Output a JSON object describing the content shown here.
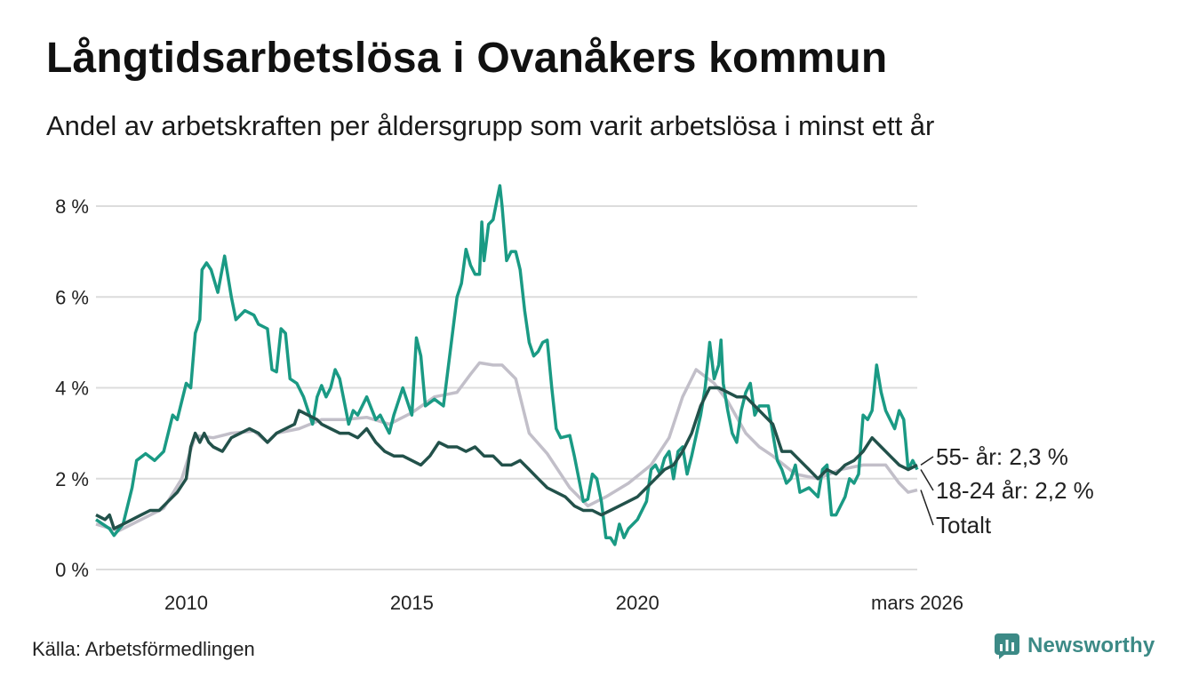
{
  "header": {
    "title": "Långtidsarbetslösa i Ovanåkers kommun",
    "subtitle": "Andel av arbetskraften per åldersgrupp som varit arbetslösa i minst ett år"
  },
  "footer": {
    "source": "Källa: Arbetsförmedlingen",
    "brand": "Newsworthy"
  },
  "chart_data": {
    "type": "line",
    "title": "Långtidsarbetslösa i Ovanåkers kommun",
    "subtitle": "Andel av arbetskraften per åldersgrupp som varit arbetslösa i minst ett år",
    "xlabel": "",
    "ylabel": "",
    "xlim": [
      2008.0,
      2026.2
    ],
    "ylim": [
      0,
      8.5
    ],
    "y_ticks": [
      0,
      2,
      4,
      6,
      8
    ],
    "y_tick_labels": [
      "0 %",
      "2 %",
      "4 %",
      "6 %",
      "8 %"
    ],
    "x_ticks": [
      2010,
      2015,
      2020,
      2026.2
    ],
    "x_tick_labels": [
      "2010",
      "2015",
      "2020",
      "mars 2026"
    ],
    "grid": true,
    "series": [
      {
        "name": "Totalt",
        "color": "#c2bfc9",
        "end_label": "Totalt",
        "points": [
          [
            2008.0,
            1.0
          ],
          [
            2008.5,
            0.85
          ],
          [
            2009.0,
            1.1
          ],
          [
            2009.5,
            1.35
          ],
          [
            2009.9,
            2.0
          ],
          [
            2010.2,
            2.95
          ],
          [
            2010.6,
            2.9
          ],
          [
            2011.0,
            3.0
          ],
          [
            2011.5,
            3.05
          ],
          [
            2011.8,
            2.8
          ],
          [
            2012.0,
            3.0
          ],
          [
            2012.5,
            3.1
          ],
          [
            2013.0,
            3.3
          ],
          [
            2013.5,
            3.3
          ],
          [
            2014.0,
            3.35
          ],
          [
            2014.5,
            3.2
          ],
          [
            2015.0,
            3.45
          ],
          [
            2015.5,
            3.8
          ],
          [
            2016.0,
            3.9
          ],
          [
            2016.3,
            4.3
          ],
          [
            2016.5,
            4.55
          ],
          [
            2016.8,
            4.5
          ],
          [
            2017.0,
            4.5
          ],
          [
            2017.3,
            4.2
          ],
          [
            2017.6,
            3.0
          ],
          [
            2018.0,
            2.55
          ],
          [
            2018.5,
            1.8
          ],
          [
            2018.9,
            1.4
          ],
          [
            2019.3,
            1.6
          ],
          [
            2019.8,
            1.9
          ],
          [
            2020.3,
            2.3
          ],
          [
            2020.7,
            2.9
          ],
          [
            2021.0,
            3.8
          ],
          [
            2021.3,
            4.4
          ],
          [
            2021.7,
            4.1
          ],
          [
            2022.0,
            3.7
          ],
          [
            2022.4,
            3.0
          ],
          [
            2022.7,
            2.7
          ],
          [
            2023.0,
            2.5
          ],
          [
            2023.5,
            2.1
          ],
          [
            2024.0,
            2.0
          ],
          [
            2024.5,
            2.2
          ],
          [
            2025.0,
            2.3
          ],
          [
            2025.5,
            2.3
          ],
          [
            2025.8,
            1.9
          ],
          [
            2026.0,
            1.7
          ],
          [
            2026.2,
            1.75
          ]
        ]
      },
      {
        "name": "18-24 år",
        "color": "#1a9a84",
        "end_label": "18-24 år: 2,2 %",
        "points": [
          [
            2008.0,
            1.1
          ],
          [
            2008.3,
            0.9
          ],
          [
            2008.4,
            0.75
          ],
          [
            2008.6,
            1.0
          ],
          [
            2008.8,
            1.8
          ],
          [
            2008.9,
            2.4
          ],
          [
            2009.1,
            2.55
          ],
          [
            2009.3,
            2.4
          ],
          [
            2009.5,
            2.6
          ],
          [
            2009.7,
            3.4
          ],
          [
            2009.8,
            3.3
          ],
          [
            2010.0,
            4.1
          ],
          [
            2010.1,
            4.0
          ],
          [
            2010.2,
            5.2
          ],
          [
            2010.3,
            5.5
          ],
          [
            2010.35,
            6.6
          ],
          [
            2010.45,
            6.75
          ],
          [
            2010.55,
            6.6
          ],
          [
            2010.7,
            6.1
          ],
          [
            2010.85,
            6.9
          ],
          [
            2011.0,
            6.0
          ],
          [
            2011.1,
            5.5
          ],
          [
            2011.3,
            5.7
          ],
          [
            2011.5,
            5.6
          ],
          [
            2011.6,
            5.4
          ],
          [
            2011.8,
            5.3
          ],
          [
            2011.9,
            4.4
          ],
          [
            2012.0,
            4.35
          ],
          [
            2012.1,
            5.3
          ],
          [
            2012.2,
            5.2
          ],
          [
            2012.3,
            4.2
          ],
          [
            2012.45,
            4.1
          ],
          [
            2012.6,
            3.8
          ],
          [
            2012.7,
            3.5
          ],
          [
            2012.8,
            3.2
          ],
          [
            2012.9,
            3.8
          ],
          [
            2013.0,
            4.05
          ],
          [
            2013.1,
            3.8
          ],
          [
            2013.2,
            4.0
          ],
          [
            2013.3,
            4.4
          ],
          [
            2013.4,
            4.2
          ],
          [
            2013.6,
            3.2
          ],
          [
            2013.7,
            3.5
          ],
          [
            2013.8,
            3.4
          ],
          [
            2014.0,
            3.8
          ],
          [
            2014.2,
            3.3
          ],
          [
            2014.3,
            3.4
          ],
          [
            2014.5,
            3.0
          ],
          [
            2014.6,
            3.4
          ],
          [
            2014.8,
            4.0
          ],
          [
            2015.0,
            3.4
          ],
          [
            2015.1,
            5.1
          ],
          [
            2015.2,
            4.7
          ],
          [
            2015.3,
            3.6
          ],
          [
            2015.5,
            3.75
          ],
          [
            2015.7,
            3.6
          ],
          [
            2015.9,
            5.2
          ],
          [
            2016.0,
            6.0
          ],
          [
            2016.1,
            6.3
          ],
          [
            2016.2,
            7.05
          ],
          [
            2016.3,
            6.7
          ],
          [
            2016.4,
            6.5
          ],
          [
            2016.5,
            6.5
          ],
          [
            2016.55,
            7.65
          ],
          [
            2016.6,
            6.8
          ],
          [
            2016.7,
            7.6
          ],
          [
            2016.8,
            7.7
          ],
          [
            2016.9,
            8.2
          ],
          [
            2016.95,
            8.45
          ],
          [
            2017.0,
            8.0
          ],
          [
            2017.1,
            6.8
          ],
          [
            2017.2,
            7.0
          ],
          [
            2017.3,
            7.0
          ],
          [
            2017.4,
            6.6
          ],
          [
            2017.5,
            5.7
          ],
          [
            2017.6,
            5.0
          ],
          [
            2017.7,
            4.7
          ],
          [
            2017.8,
            4.8
          ],
          [
            2017.9,
            5.0
          ],
          [
            2018.0,
            5.05
          ],
          [
            2018.1,
            4.0
          ],
          [
            2018.2,
            3.1
          ],
          [
            2018.3,
            2.9
          ],
          [
            2018.5,
            2.95
          ],
          [
            2018.6,
            2.5
          ],
          [
            2018.8,
            1.5
          ],
          [
            2018.9,
            1.55
          ],
          [
            2019.0,
            2.1
          ],
          [
            2019.1,
            2.0
          ],
          [
            2019.2,
            1.5
          ],
          [
            2019.3,
            0.7
          ],
          [
            2019.4,
            0.7
          ],
          [
            2019.5,
            0.55
          ],
          [
            2019.6,
            1.0
          ],
          [
            2019.7,
            0.7
          ],
          [
            2019.8,
            0.9
          ],
          [
            2020.0,
            1.1
          ],
          [
            2020.2,
            1.5
          ],
          [
            2020.3,
            2.2
          ],
          [
            2020.4,
            2.3
          ],
          [
            2020.5,
            2.1
          ],
          [
            2020.6,
            2.45
          ],
          [
            2020.7,
            2.6
          ],
          [
            2020.8,
            2.0
          ],
          [
            2020.9,
            2.6
          ],
          [
            2021.0,
            2.7
          ],
          [
            2021.1,
            2.1
          ],
          [
            2021.2,
            2.5
          ],
          [
            2021.4,
            3.4
          ],
          [
            2021.5,
            4.0
          ],
          [
            2021.6,
            5.0
          ],
          [
            2021.7,
            4.2
          ],
          [
            2021.8,
            4.5
          ],
          [
            2021.85,
            5.05
          ],
          [
            2021.9,
            4.1
          ],
          [
            2022.0,
            3.5
          ],
          [
            2022.1,
            3.0
          ],
          [
            2022.2,
            2.8
          ],
          [
            2022.3,
            3.5
          ],
          [
            2022.4,
            3.9
          ],
          [
            2022.5,
            4.1
          ],
          [
            2022.6,
            3.4
          ],
          [
            2022.7,
            3.6
          ],
          [
            2022.9,
            3.6
          ],
          [
            2023.0,
            3.0
          ],
          [
            2023.1,
            2.4
          ],
          [
            2023.2,
            2.2
          ],
          [
            2023.3,
            1.9
          ],
          [
            2023.4,
            2.0
          ],
          [
            2023.5,
            2.3
          ],
          [
            2023.6,
            1.7
          ],
          [
            2023.8,
            1.8
          ],
          [
            2024.0,
            1.6
          ],
          [
            2024.1,
            2.2
          ],
          [
            2024.2,
            2.3
          ],
          [
            2024.3,
            1.2
          ],
          [
            2024.4,
            1.2
          ],
          [
            2024.5,
            1.4
          ],
          [
            2024.6,
            1.6
          ],
          [
            2024.7,
            2.0
          ],
          [
            2024.8,
            1.9
          ],
          [
            2024.9,
            2.1
          ],
          [
            2025.0,
            3.4
          ],
          [
            2025.1,
            3.3
          ],
          [
            2025.2,
            3.5
          ],
          [
            2025.3,
            4.5
          ],
          [
            2025.4,
            3.9
          ],
          [
            2025.5,
            3.5
          ],
          [
            2025.6,
            3.3
          ],
          [
            2025.7,
            3.1
          ],
          [
            2025.8,
            3.5
          ],
          [
            2025.9,
            3.3
          ],
          [
            2026.0,
            2.2
          ],
          [
            2026.1,
            2.4
          ],
          [
            2026.2,
            2.2
          ]
        ]
      },
      {
        "name": "55- år",
        "color": "#22514a",
        "end_label": "55- år: 2,3 %",
        "points": [
          [
            2008.0,
            1.2
          ],
          [
            2008.2,
            1.1
          ],
          [
            2008.3,
            1.2
          ],
          [
            2008.4,
            0.9
          ],
          [
            2008.6,
            1.0
          ],
          [
            2008.8,
            1.1
          ],
          [
            2009.0,
            1.2
          ],
          [
            2009.2,
            1.3
          ],
          [
            2009.4,
            1.3
          ],
          [
            2009.6,
            1.5
          ],
          [
            2009.8,
            1.7
          ],
          [
            2010.0,
            2.0
          ],
          [
            2010.1,
            2.7
          ],
          [
            2010.2,
            3.0
          ],
          [
            2010.3,
            2.8
          ],
          [
            2010.4,
            3.0
          ],
          [
            2010.5,
            2.8
          ],
          [
            2010.6,
            2.7
          ],
          [
            2010.8,
            2.6
          ],
          [
            2011.0,
            2.9
          ],
          [
            2011.2,
            3.0
          ],
          [
            2011.4,
            3.1
          ],
          [
            2011.6,
            3.0
          ],
          [
            2011.8,
            2.8
          ],
          [
            2012.0,
            3.0
          ],
          [
            2012.2,
            3.1
          ],
          [
            2012.4,
            3.2
          ],
          [
            2012.5,
            3.5
          ],
          [
            2012.7,
            3.4
          ],
          [
            2012.9,
            3.3
          ],
          [
            2013.0,
            3.2
          ],
          [
            2013.2,
            3.1
          ],
          [
            2013.4,
            3.0
          ],
          [
            2013.6,
            3.0
          ],
          [
            2013.8,
            2.9
          ],
          [
            2014.0,
            3.1
          ],
          [
            2014.2,
            2.8
          ],
          [
            2014.4,
            2.6
          ],
          [
            2014.6,
            2.5
          ],
          [
            2014.8,
            2.5
          ],
          [
            2015.0,
            2.4
          ],
          [
            2015.2,
            2.3
          ],
          [
            2015.4,
            2.5
          ],
          [
            2015.6,
            2.8
          ],
          [
            2015.8,
            2.7
          ],
          [
            2016.0,
            2.7
          ],
          [
            2016.2,
            2.6
          ],
          [
            2016.4,
            2.7
          ],
          [
            2016.6,
            2.5
          ],
          [
            2016.8,
            2.5
          ],
          [
            2017.0,
            2.3
          ],
          [
            2017.2,
            2.3
          ],
          [
            2017.4,
            2.4
          ],
          [
            2017.6,
            2.2
          ],
          [
            2017.8,
            2.0
          ],
          [
            2018.0,
            1.8
          ],
          [
            2018.2,
            1.7
          ],
          [
            2018.4,
            1.6
          ],
          [
            2018.6,
            1.4
          ],
          [
            2018.8,
            1.3
          ],
          [
            2019.0,
            1.3
          ],
          [
            2019.2,
            1.2
          ],
          [
            2019.4,
            1.3
          ],
          [
            2019.6,
            1.4
          ],
          [
            2019.8,
            1.5
          ],
          [
            2020.0,
            1.6
          ],
          [
            2020.2,
            1.8
          ],
          [
            2020.4,
            2.0
          ],
          [
            2020.6,
            2.2
          ],
          [
            2020.8,
            2.3
          ],
          [
            2021.0,
            2.6
          ],
          [
            2021.2,
            3.0
          ],
          [
            2021.4,
            3.6
          ],
          [
            2021.6,
            4.0
          ],
          [
            2021.8,
            4.0
          ],
          [
            2022.0,
            3.9
          ],
          [
            2022.2,
            3.8
          ],
          [
            2022.4,
            3.8
          ],
          [
            2022.6,
            3.6
          ],
          [
            2022.8,
            3.4
          ],
          [
            2023.0,
            3.2
          ],
          [
            2023.2,
            2.6
          ],
          [
            2023.4,
            2.6
          ],
          [
            2023.6,
            2.4
          ],
          [
            2023.8,
            2.2
          ],
          [
            2024.0,
            2.0
          ],
          [
            2024.2,
            2.2
          ],
          [
            2024.4,
            2.1
          ],
          [
            2024.6,
            2.3
          ],
          [
            2024.8,
            2.4
          ],
          [
            2025.0,
            2.6
          ],
          [
            2025.2,
            2.9
          ],
          [
            2025.4,
            2.7
          ],
          [
            2025.6,
            2.5
          ],
          [
            2025.8,
            2.3
          ],
          [
            2026.0,
            2.2
          ],
          [
            2026.2,
            2.3
          ]
        ]
      }
    ]
  }
}
